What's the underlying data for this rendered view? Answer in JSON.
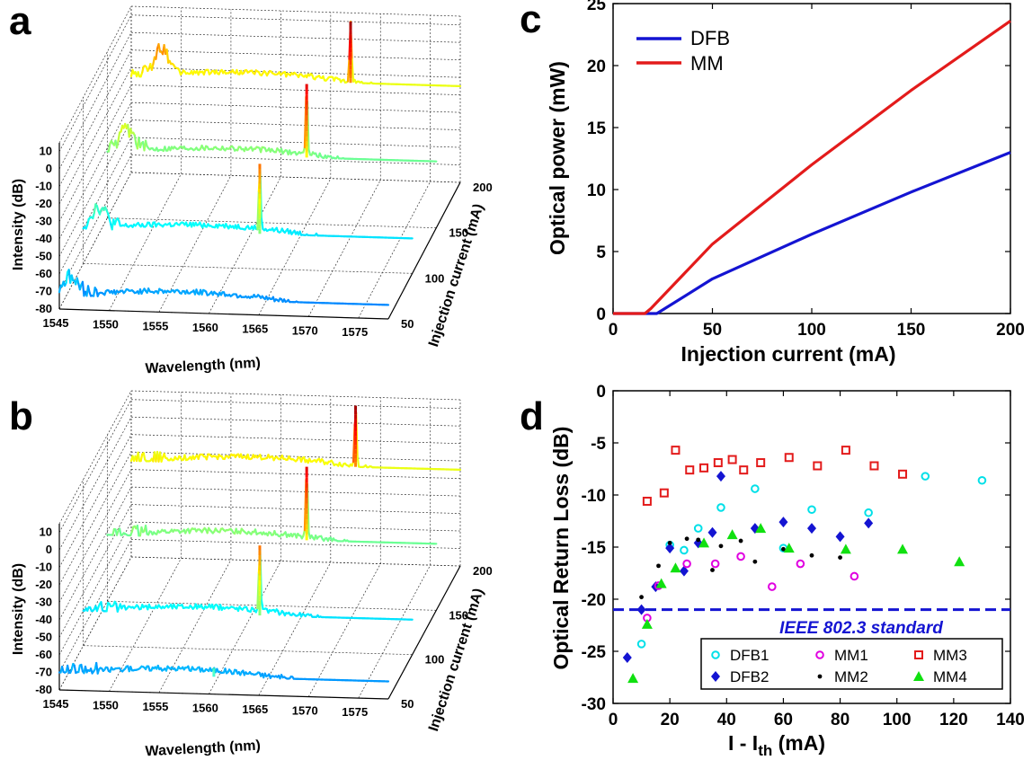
{
  "panels": [
    {
      "id": "a",
      "label": "a"
    },
    {
      "id": "b",
      "label": "b"
    },
    {
      "id": "c",
      "label": "c"
    },
    {
      "id": "d",
      "label": "d"
    }
  ],
  "chart_data": [
    {
      "panel": "a",
      "type": "line",
      "subtype": "3d-waterfall-spectra",
      "xlabel": "Wavelength (nm)",
      "ylabel": "Intensity (dB)",
      "zlabel": "Injection current (mA)",
      "x_ticks": [
        1545,
        1550,
        1555,
        1560,
        1565,
        1570,
        1575
      ],
      "z_ticks": [
        10,
        0,
        -10,
        -20,
        -30,
        -40,
        -50,
        -60,
        -70,
        -80
      ],
      "y_ticks": [
        50,
        100,
        150,
        200
      ],
      "xlim": [
        1545,
        1578
      ],
      "zlim": [
        -80,
        15
      ],
      "series": [
        {
          "current": 50,
          "peak_wavelength": 1560.8,
          "peak_intensity": -72,
          "floor": -72,
          "side_mode_wavelength": 1546,
          "side_mode_intensity": -62
        },
        {
          "current": 100,
          "peak_wavelength": 1562.7,
          "peak_intensity": -20,
          "floor": -60,
          "side_mode_wavelength": 1546.5,
          "side_mode_intensity": -48
        },
        {
          "current": 150,
          "peak_wavelength": 1565,
          "peak_intensity": 0,
          "floor": -42,
          "side_mode_wavelength": 1547,
          "side_mode_intensity": -30
        },
        {
          "current": 200,
          "peak_wavelength": 1567,
          "peak_intensity": 10,
          "floor": -25,
          "side_mode_wavelength": 1548,
          "side_mode_intensity": -10
        }
      ]
    },
    {
      "panel": "b",
      "type": "line",
      "subtype": "3d-waterfall-spectra",
      "xlabel": "Wavelength (nm)",
      "ylabel": "Intensity (dB)",
      "zlabel": "Injection current (mA)",
      "x_ticks": [
        1545,
        1550,
        1555,
        1560,
        1565,
        1570,
        1575
      ],
      "z_ticks": [
        10,
        0,
        -10,
        -20,
        -30,
        -40,
        -50,
        -60,
        -70,
        -80
      ],
      "y_ticks": [
        50,
        100,
        150,
        200
      ],
      "xlim": [
        1545,
        1578
      ],
      "zlim": [
        -80,
        15
      ],
      "series": [
        {
          "current": 50,
          "peak_wavelength": 1560.5,
          "peak_intensity": -65,
          "floor": -70
        },
        {
          "current": 100,
          "peak_wavelength": 1562.7,
          "peak_intensity": -20,
          "floor": -60
        },
        {
          "current": 150,
          "peak_wavelength": 1565,
          "peak_intensity": 0,
          "floor": -42
        },
        {
          "current": 200,
          "peak_wavelength": 1567.5,
          "peak_intensity": 10,
          "floor": -25
        }
      ]
    },
    {
      "panel": "c",
      "type": "line",
      "xlabel": "Injection current (mA)",
      "ylabel": "Optical power (mW)",
      "xlim": [
        0,
        200
      ],
      "ylim": [
        0,
        25
      ],
      "x_ticks": [
        0,
        50,
        100,
        150,
        200
      ],
      "y_ticks": [
        0,
        5,
        10,
        15,
        20,
        25
      ],
      "legend": "top-left",
      "series": [
        {
          "name": "DFB",
          "color": "#1414d2",
          "x": [
            0,
            22,
            25,
            50,
            100,
            150,
            200
          ],
          "y": [
            0,
            0,
            0.3,
            2.8,
            6.4,
            9.8,
            13.0
          ]
        },
        {
          "name": "MM",
          "color": "#e31b1b",
          "x": [
            0,
            16,
            19,
            50,
            100,
            150,
            200
          ],
          "y": [
            0,
            0,
            0.4,
            5.6,
            12.0,
            18.0,
            23.6
          ]
        }
      ]
    },
    {
      "panel": "d",
      "type": "scatter",
      "xlabel": "I - I",
      "xlabel_sub": "th",
      "xlabel_unit": " (mA)",
      "ylabel": "Optical Return Loss (dB)",
      "xlim": [
        0,
        140
      ],
      "ylim": [
        -30,
        0
      ],
      "x_ticks": [
        0,
        20,
        40,
        60,
        80,
        100,
        120,
        140
      ],
      "y_ticks": [
        0,
        -5,
        -10,
        -15,
        -20,
        -25,
        -30
      ],
      "reference_line": {
        "y": -21,
        "label": "IEEE 802.3 standard",
        "color": "#1414d2"
      },
      "legend": "bottom-right",
      "series": [
        {
          "name": "DFB1",
          "color": "#00e0e8",
          "marker": "circle-open",
          "x": [
            10,
            20,
            25,
            30,
            38,
            50,
            60,
            70,
            90,
            110,
            130
          ],
          "y": [
            -24.3,
            -14.8,
            -15.3,
            -13.2,
            -11.2,
            -9.4,
            -15.1,
            -11.4,
            -11.7,
            -8.2,
            -8.6
          ]
        },
        {
          "name": "DFB2",
          "color": "#1414d2",
          "marker": "diamond",
          "x": [
            5,
            10,
            15,
            20,
            25,
            30,
            35,
            38,
            50,
            60,
            70,
            80,
            90
          ],
          "y": [
            -25.6,
            -21.0,
            -18.8,
            -15.1,
            -17.3,
            -14.6,
            -13.6,
            -8.2,
            -13.2,
            -12.6,
            -13.2,
            -14.0,
            -12.7
          ]
        },
        {
          "name": "MM1",
          "color": "#e000e0",
          "marker": "circle-open",
          "x": [
            12,
            16,
            26,
            36,
            45,
            56,
            66,
            85
          ],
          "y": [
            -21.8,
            -18.7,
            -16.6,
            -16.6,
            -15.9,
            -18.8,
            -16.6,
            -17.8
          ]
        },
        {
          "name": "MM2",
          "color": "#000000",
          "marker": "dot",
          "x": [
            10,
            16,
            20,
            26,
            30,
            35,
            38,
            45,
            50,
            60,
            70,
            80
          ],
          "y": [
            -19.8,
            -16.8,
            -14.6,
            -14.2,
            -14.3,
            -17.2,
            -14.9,
            -14.4,
            -16.4,
            -15.2,
            -15.8,
            -16.0
          ]
        },
        {
          "name": "MM3",
          "color": "#e31b1b",
          "marker": "square-open",
          "x": [
            12,
            18,
            22,
            27,
            32,
            37,
            42,
            46,
            52,
            62,
            72,
            82,
            92,
            102
          ],
          "y": [
            -10.6,
            -9.8,
            -5.7,
            -7.6,
            -7.4,
            -6.9,
            -6.6,
            -7.6,
            -6.9,
            -6.4,
            -7.2,
            -5.7,
            -7.2,
            -8.0
          ]
        },
        {
          "name": "MM4",
          "color": "#10e010",
          "marker": "triangle",
          "x": [
            7,
            12,
            17,
            22,
            32,
            42,
            52,
            62,
            82,
            102,
            122
          ],
          "y": [
            -27.6,
            -22.4,
            -18.5,
            -17.0,
            -14.6,
            -13.8,
            -13.2,
            -15.1,
            -15.2,
            -15.2,
            -16.4
          ]
        }
      ]
    }
  ]
}
